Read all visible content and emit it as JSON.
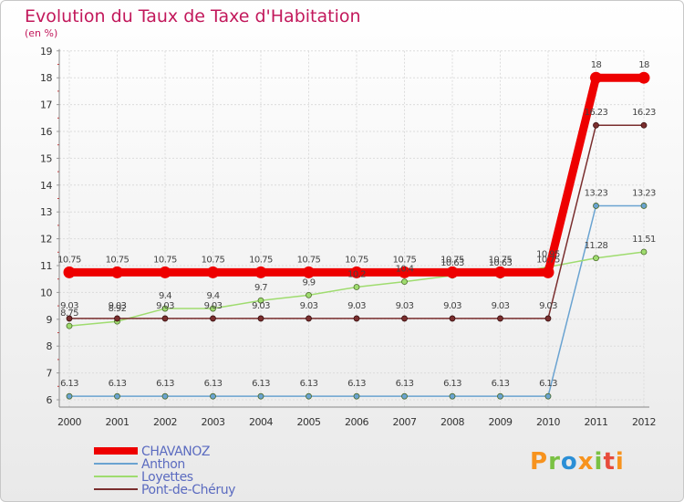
{
  "header": {
    "title": "Evolution du Taux de Taxe d'Habitation",
    "unit": "(en %)"
  },
  "brand": {
    "text": "Proxiti",
    "colors": [
      "#f7931e",
      "#7ac143",
      "#2b8fd6",
      "#f7931e",
      "#7ac143",
      "#e74c3c",
      "#f7931e"
    ]
  },
  "chart_data": {
    "type": "line",
    "title": "Evolution du Taux de Taxe d'Habitation",
    "ylabel": "(en %)",
    "ylim": [
      6,
      19
    ],
    "x": [
      "2000",
      "2001",
      "2002",
      "2003",
      "2004",
      "2005",
      "2006",
      "2007",
      "2008",
      "2009",
      "2010",
      "2011",
      "2012"
    ],
    "yticks": [
      "6",
      "7",
      "8",
      "9",
      "10",
      "11",
      "12",
      "13",
      "14",
      "15",
      "16",
      "17",
      "18",
      "19"
    ],
    "series": [
      {
        "name": "CHAVANOZ",
        "color": "#ee0000",
        "values": [
          10.75,
          10.75,
          10.75,
          10.75,
          10.75,
          10.75,
          10.75,
          10.75,
          10.75,
          10.75,
          10.75,
          18,
          18
        ],
        "labels": [
          "10.75",
          "10.75",
          "10.75",
          "10.75",
          "10.75",
          "10.75",
          "10.75",
          "10.75",
          "10.75",
          "10.75",
          "10.75",
          "18",
          "18"
        ]
      },
      {
        "name": "Anthon",
        "color": "#6aa3d1",
        "values": [
          6.13,
          6.13,
          6.13,
          6.13,
          6.13,
          6.13,
          6.13,
          6.13,
          6.13,
          6.13,
          6.13,
          13.23,
          13.23
        ],
        "labels": [
          "6.13",
          "6.13",
          "6.13",
          "6.13",
          "6.13",
          "6.13",
          "6.13",
          "6.13",
          "6.13",
          "6.13",
          "6.13",
          "13.23",
          "13.23"
        ]
      },
      {
        "name": "Loyettes",
        "color": "#9fdc6f",
        "values": [
          8.75,
          8.92,
          9.4,
          9.4,
          9.7,
          9.9,
          10.2,
          10.4,
          10.63,
          10.63,
          10.95,
          11.28,
          11.51
        ],
        "labels": [
          "8.75",
          "8.92",
          "9.4",
          "9.4",
          "9.7",
          "9.9",
          "10.2",
          "10.4",
          "10.63",
          "10.63",
          "10.95",
          "11.28",
          "11.51"
        ]
      },
      {
        "name": "Pont-de-Chéruy",
        "color": "#7a2e2e",
        "values": [
          9.03,
          9.03,
          9.03,
          9.03,
          9.03,
          9.03,
          9.03,
          9.03,
          9.03,
          9.03,
          9.03,
          16.23,
          16.23
        ],
        "labels": [
          "9.03",
          "9.03",
          "9.03",
          "9.03",
          "9.03",
          "9.03",
          "9.03",
          "9.03",
          "9.03",
          "9.03",
          "9.03",
          "16.23",
          "16.23"
        ]
      }
    ]
  }
}
